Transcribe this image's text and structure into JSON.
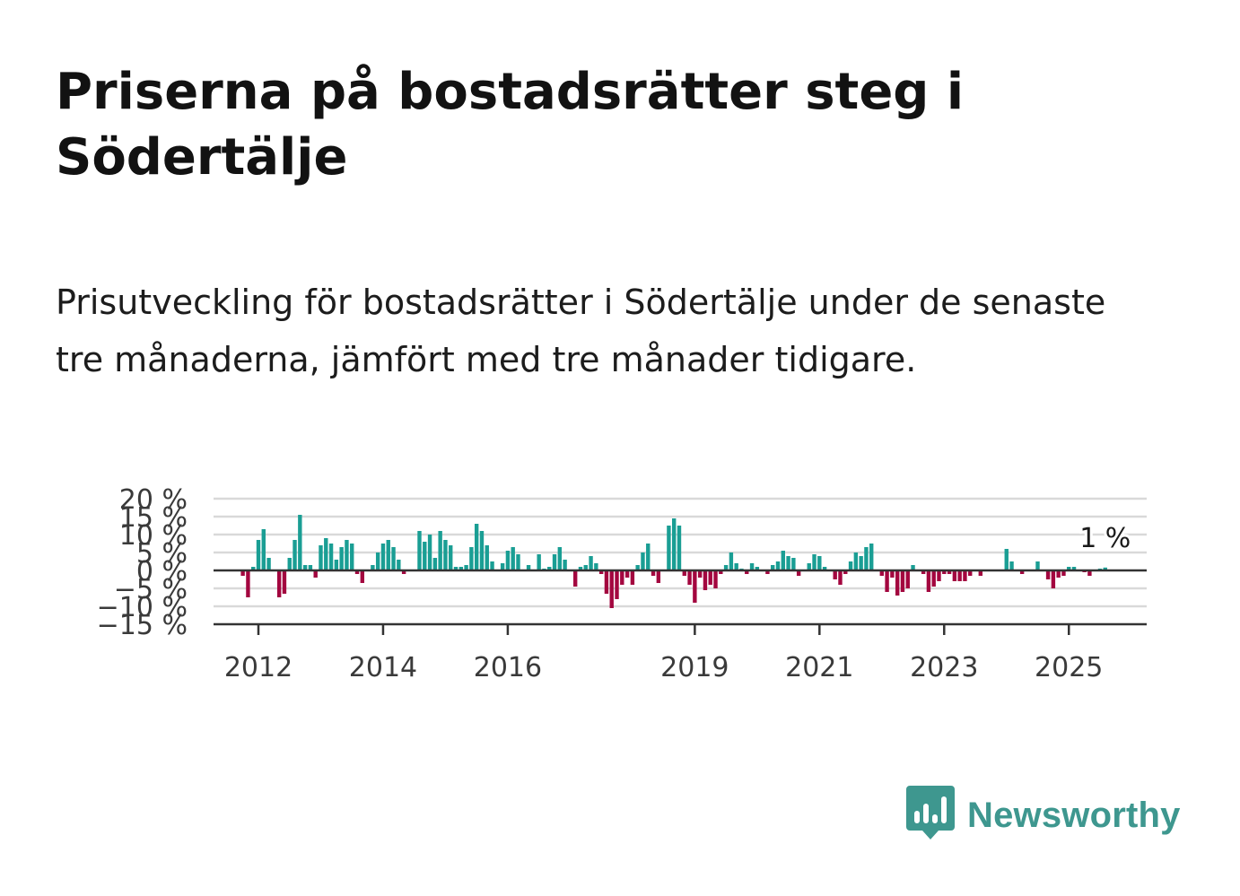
{
  "header": {
    "title": "Priserna på bostadsrätter steg i Södertälje",
    "subtitle": "Prisutveckling för bostadsrätter i Södertälje under de senaste tre månaderna, jämfört med tre månader tidigare."
  },
  "brand": {
    "name": "Newsworthy",
    "icon": "newsworthy-logo-icon",
    "color": "#3e978f"
  },
  "colors": {
    "positive": "#1a9e94",
    "negative": "#a3063f",
    "grid": "#d9d9d9",
    "axis": "#333333"
  },
  "chart_data": {
    "type": "bar",
    "title": "",
    "xlabel": "",
    "ylabel": "",
    "ylim": [
      -15,
      20
    ],
    "y_ticks": [
      20,
      15,
      10,
      5,
      0,
      -5,
      -10,
      -15
    ],
    "y_tick_labels": [
      "20 %",
      "15 %",
      "10 %",
      "5 %",
      "0 %",
      "−5 %",
      "−10 %",
      "−15 %"
    ],
    "x_ticks": [
      2012,
      2014,
      2016,
      2019,
      2021,
      2023,
      2025
    ],
    "x_tick_labels": [
      "2012",
      "2014",
      "2016",
      "2019",
      "2021",
      "2023",
      "2025"
    ],
    "start": "2011-10",
    "frequency": "monthly",
    "last_value_label": "1 %",
    "values": [
      -1.5,
      -7.5,
      1,
      8.5,
      11.5,
      3.5,
      0,
      -7.5,
      -6.5,
      3.5,
      8.5,
      15.5,
      1.5,
      1.5,
      -2,
      7,
      9,
      7.5,
      3,
      6.5,
      8.5,
      7.5,
      -1,
      -3.5,
      0,
      1.5,
      5,
      7.5,
      8.5,
      6.5,
      3,
      -1,
      0,
      0,
      11,
      8,
      10,
      3.5,
      11,
      8.5,
      7,
      1,
      1,
      1.5,
      6.5,
      13,
      11,
      7,
      2.5,
      0,
      2,
      5.5,
      6.5,
      4.5,
      0,
      1.5,
      0,
      4.5,
      0.5,
      1,
      4.5,
      6.5,
      3,
      0,
      -4.5,
      1,
      1.5,
      4,
      2,
      -1,
      -6.5,
      -10.5,
      -8,
      -4,
      -2,
      -4,
      1.5,
      5,
      7.5,
      -1.5,
      -3.5,
      0,
      12.5,
      14.5,
      12.5,
      -1.5,
      -4,
      -9,
      -2,
      -5.5,
      -4,
      -5,
      -1,
      1.5,
      5,
      2,
      0.5,
      -1,
      2,
      1,
      0,
      -1,
      1.5,
      2.5,
      5.5,
      4,
      3.5,
      -1.5,
      0,
      2,
      4.5,
      4,
      1,
      0,
      -2.5,
      -4,
      -1,
      2.5,
      5,
      4,
      6.5,
      7.5,
      0,
      -1.5,
      -6,
      -2,
      -7,
      -6,
      -5,
      1.5,
      0,
      -1,
      -6,
      -4.5,
      -3,
      -1,
      -1,
      -3,
      -3,
      -3,
      -1.5,
      0,
      -1.5,
      0,
      0,
      0,
      0,
      6,
      2.5,
      0,
      -1,
      0,
      0,
      2.5,
      0,
      -2.5,
      -5,
      -2,
      -1.5,
      1,
      1,
      0,
      -0.5,
      -1.5,
      0,
      0.5,
      0.8
    ]
  }
}
